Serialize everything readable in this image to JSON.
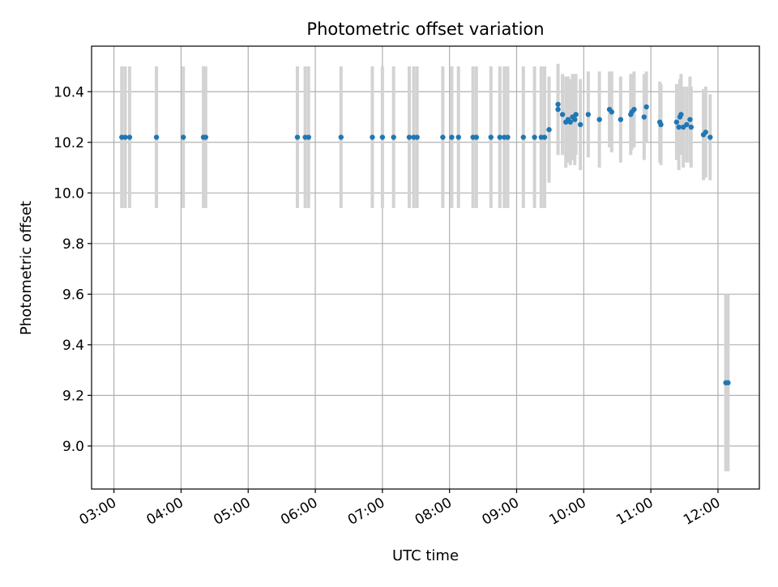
{
  "chart_data": {
    "type": "scatter",
    "title": "Photometric offset variation",
    "xlabel": "UTC time",
    "ylabel": "Photometric offset",
    "x_unit": "hours UTC",
    "xlim": [
      "02:40",
      "12:37"
    ],
    "ylim": [
      8.83,
      10.58
    ],
    "x_ticks": [
      "03:00",
      "04:00",
      "05:00",
      "06:00",
      "07:00",
      "08:00",
      "09:00",
      "10:00",
      "11:00",
      "12:00"
    ],
    "y_ticks": [
      "9.0",
      "9.2",
      "9.4",
      "9.6",
      "9.8",
      "10.0",
      "10.2",
      "10.4"
    ],
    "grid": true,
    "legend": "none",
    "colors": {
      "points": "#1f77b4",
      "error_bars": "#d3d3d3",
      "grid": "#b0b0b0"
    },
    "series": [
      {
        "x": [
          "03:07",
          "03:10",
          "03:14",
          "03:38",
          "04:02",
          "04:20",
          "04:22",
          "05:44",
          "05:51",
          "05:54",
          "06:23",
          "06:51",
          "07:00",
          "07:10",
          "07:24",
          "07:28",
          "07:31",
          "07:54",
          "08:02",
          "08:08",
          "08:21",
          "08:24",
          "08:37",
          "08:45",
          "08:49",
          "08:52",
          "09:06",
          "09:16",
          "09:22",
          "09:25",
          "09:29",
          "09:37",
          "09:37",
          "09:41",
          "09:44",
          "09:46",
          "09:48",
          "09:50",
          "09:52",
          "09:53",
          "09:57",
          "10:04",
          "10:14",
          "10:23",
          "10:25",
          "10:33",
          "10:42",
          "10:43",
          "10:45",
          "10:54",
          "10:56",
          "11:08",
          "11:09",
          "11:23",
          "11:25",
          "11:26",
          "11:27",
          "11:29",
          "11:32",
          "11:35",
          "11:36",
          "11:47",
          "11:49",
          "11:53",
          "12:07",
          "12:09"
        ],
        "y": [
          10.22,
          10.22,
          10.22,
          10.22,
          10.22,
          10.22,
          10.22,
          10.22,
          10.22,
          10.22,
          10.22,
          10.22,
          10.22,
          10.22,
          10.22,
          10.22,
          10.22,
          10.22,
          10.22,
          10.22,
          10.22,
          10.22,
          10.22,
          10.22,
          10.22,
          10.22,
          10.22,
          10.22,
          10.22,
          10.22,
          10.25,
          10.35,
          10.33,
          10.31,
          10.28,
          10.29,
          10.28,
          10.3,
          10.29,
          10.31,
          10.27,
          10.31,
          10.29,
          10.33,
          10.32,
          10.29,
          10.31,
          10.32,
          10.33,
          10.3,
          10.34,
          10.28,
          10.27,
          10.28,
          10.26,
          10.3,
          10.31,
          10.26,
          10.27,
          10.29,
          10.26,
          10.23,
          10.24,
          10.22,
          9.25,
          9.25
        ],
        "yerr": [
          0.28,
          0.28,
          0.28,
          0.28,
          0.28,
          0.28,
          0.28,
          0.28,
          0.28,
          0.28,
          0.28,
          0.28,
          0.28,
          0.28,
          0.28,
          0.28,
          0.28,
          0.28,
          0.28,
          0.28,
          0.28,
          0.28,
          0.28,
          0.28,
          0.28,
          0.28,
          0.28,
          0.28,
          0.28,
          0.28,
          0.21,
          0.16,
          0.18,
          0.16,
          0.18,
          0.17,
          0.17,
          0.17,
          0.18,
          0.16,
          0.18,
          0.17,
          0.19,
          0.15,
          0.16,
          0.17,
          0.16,
          0.15,
          0.15,
          0.17,
          0.14,
          0.16,
          0.16,
          0.15,
          0.17,
          0.15,
          0.16,
          0.16,
          0.15,
          0.17,
          0.16,
          0.18,
          0.18,
          0.17,
          0.35,
          0.35
        ]
      }
    ]
  }
}
